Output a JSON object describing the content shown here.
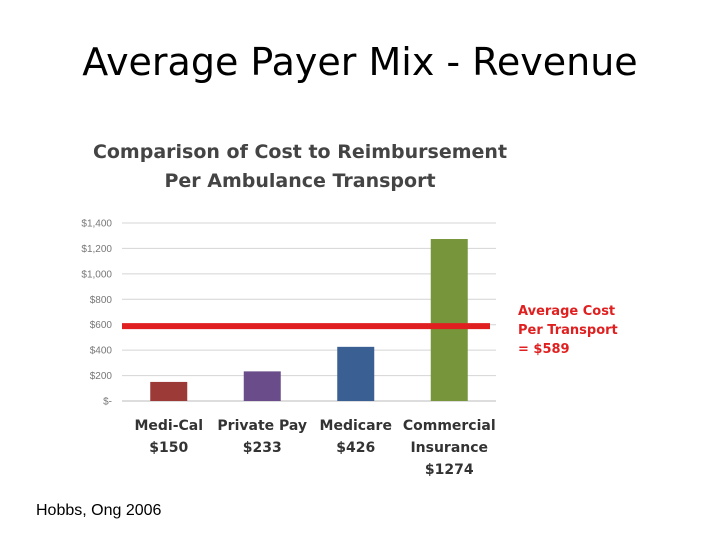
{
  "slide": {
    "title": "Average Payer Mix - Revenue",
    "citation": "Hobbs, Ong 2006"
  },
  "chart_data": {
    "type": "bar",
    "title_lines": [
      "Comparison of Cost to Reimbursement",
      "Per Ambulance Transport"
    ],
    "categories": [
      {
        "lines": [
          "Medi-Cal",
          "$150"
        ]
      },
      {
        "lines": [
          "Private Pay",
          "$233"
        ]
      },
      {
        "lines": [
          "Medicare",
          "$426"
        ]
      },
      {
        "lines": [
          "Commercial",
          "Insurance",
          "$1274"
        ]
      }
    ],
    "values": [
      150,
      233,
      426,
      1274
    ],
    "bar_colors": [
      "#9b3a36",
      "#6b4c8a",
      "#3a5f93",
      "#77963b"
    ],
    "ylim": [
      0,
      1400
    ],
    "yticks": [
      0,
      200,
      400,
      600,
      800,
      1000,
      1200,
      1400
    ],
    "ytick_labels": [
      "$-",
      "$200",
      "$400",
      "$600",
      "$800",
      "$1,000",
      "$1,200",
      "$1,400"
    ],
    "grid": true,
    "reference_line": {
      "value": 589,
      "color": "#e02020",
      "label_lines": [
        "Average Cost",
        "Per Transport",
        "= $589"
      ]
    }
  }
}
